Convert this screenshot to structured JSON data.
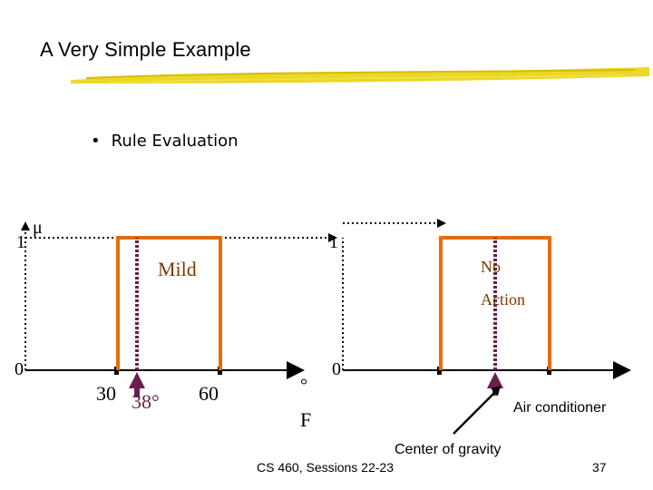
{
  "slide": {
    "title": "A Very Simple Example",
    "bullet": "Rule Evaluation",
    "footer_center": "CS 460,  Sessions 22-23",
    "page_number": "37"
  },
  "left_chart": {
    "y_top_label": "1",
    "y_axis_symbol": "μ",
    "y_zero_label": "0",
    "set_label": "Mild",
    "tick_30": "30",
    "input_value": "38°",
    "tick_60": "60",
    "unit_degree": "°",
    "unit_F": "F"
  },
  "right_chart": {
    "y_top_label": "1",
    "y_zero_label": "0",
    "set_label_line1": "No",
    "set_label_line2": "Action",
    "annotation_output": "Air conditioner",
    "annotation_cog": "Center of gravity"
  },
  "colors": {
    "membership": "#E46C0A",
    "input_marker": "#6B1F4F",
    "set_label": "#7A3B00",
    "accent_stroke": "#E8D000"
  }
}
